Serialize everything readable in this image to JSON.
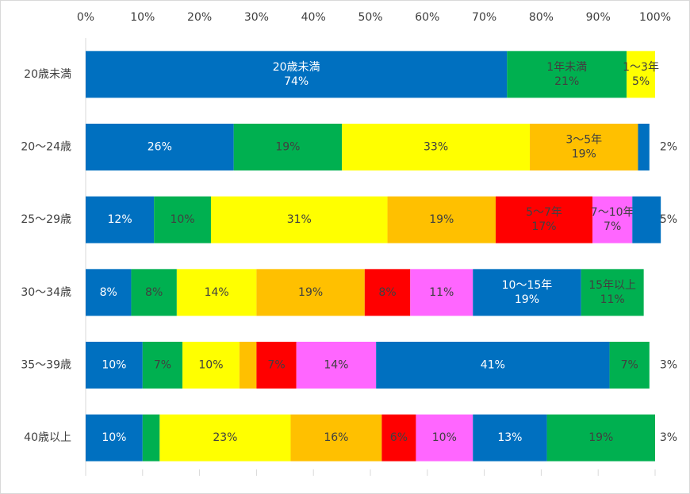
{
  "chart_data": {
    "type": "stacked-bar-h",
    "categories": [
      "20歳未満",
      "20～24歳",
      "25～29歳",
      "30～34歳",
      "35～39歳",
      "40歳以上"
    ],
    "xlim": [
      0,
      100
    ],
    "xticks": [
      {
        "value": 0,
        "label": "0%"
      },
      {
        "value": 10,
        "label": "10%"
      },
      {
        "value": 20,
        "label": "20%"
      },
      {
        "value": 30,
        "label": "30%"
      },
      {
        "value": 40,
        "label": "40%"
      },
      {
        "value": 50,
        "label": "50%"
      },
      {
        "value": 60,
        "label": "60%"
      },
      {
        "value": 70,
        "label": "70%"
      },
      {
        "value": 80,
        "label": "80%"
      },
      {
        "value": 90,
        "label": "90%"
      },
      {
        "value": 100,
        "label": "100%"
      }
    ],
    "series": [
      {
        "color": "#0070c0",
        "values": [
          74,
          26,
          12,
          8,
          10,
          10
        ],
        "value_labels": [
          "20歳未満\n74%",
          "26%",
          "12%",
          "8%",
          "10%",
          "10%"
        ]
      },
      {
        "color": "#00b050",
        "values": [
          21,
          19,
          10,
          8,
          7,
          3
        ],
        "value_labels": [
          "1年未満\n21%",
          "19%",
          "10%",
          "8%",
          "7%",
          "3%"
        ]
      },
      {
        "color": "#ffff00",
        "values": [
          5,
          33,
          31,
          14,
          10,
          23
        ],
        "value_labels": [
          "1～3年\n5%",
          "33%",
          "31%",
          "14%",
          "10%",
          "23%"
        ]
      },
      {
        "color": "#ffc000",
        "values": [
          0,
          19,
          19,
          19,
          3,
          16
        ],
        "value_labels": [
          null,
          "3～5年\n19%",
          "19%",
          "19%",
          "3%",
          "16%"
        ]
      },
      {
        "color": "#ff0000",
        "values": [
          0,
          0,
          17,
          8,
          7,
          6
        ],
        "value_labels": [
          null,
          null,
          "5～7年\n17%",
          "8%",
          "7%",
          "6%"
        ]
      },
      {
        "color": "#ff66ff",
        "values": [
          0,
          0,
          7,
          11,
          14,
          10
        ],
        "value_labels": [
          null,
          null,
          "7～10年\n7%",
          "11%",
          "14%",
          "10%"
        ]
      },
      {
        "color": "#0070c0",
        "values": [
          0,
          2,
          5,
          19,
          41,
          13
        ],
        "value_labels": [
          null,
          "2%",
          "5%",
          "10～15年\n19%",
          "41%",
          "13%"
        ]
      },
      {
        "color": "#00b050",
        "values": [
          0,
          0,
          0,
          11,
          7,
          19
        ],
        "value_labels": [
          null,
          null,
          null,
          "15年以上\n11%",
          "7%",
          "19%"
        ]
      }
    ]
  }
}
